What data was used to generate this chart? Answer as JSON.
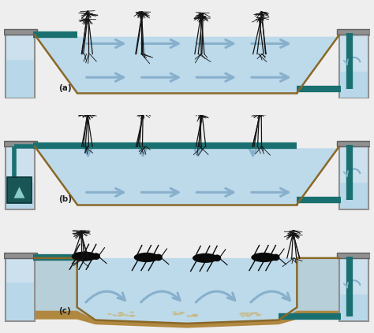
{
  "bg_color": "#c8b890",
  "water_color": "#b8d8ea",
  "teal_color": "#1a7070",
  "teal_dark": "#155858",
  "gray_color": "#909090",
  "gray_dark": "#606060",
  "tank_fill": "#cce0ee",
  "tank_outline": "#808080",
  "arrow_color": "#88b0cc",
  "stem_color": "#151515",
  "insect_color": "#111111",
  "panel_bg": "#eeeeee",
  "white": "#ffffff",
  "soil_brown": "#b08840",
  "soil_light": "#c8a060",
  "figsize": [
    4.74,
    4.23
  ],
  "dpi": 100,
  "labels": [
    "(a)",
    "(b)",
    "(c)"
  ]
}
